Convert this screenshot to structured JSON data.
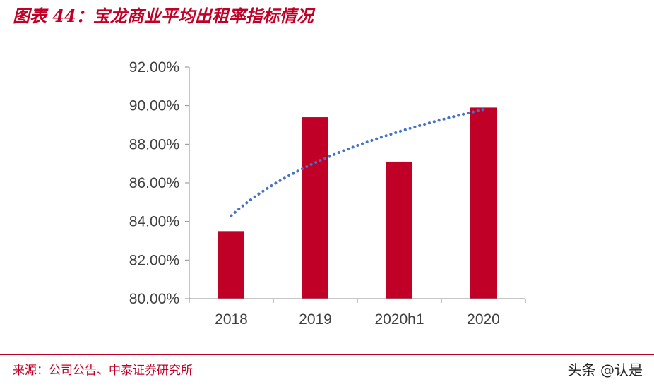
{
  "title": "图表 44：宝龙商业平均出租率指标情况",
  "source": "来源：公司公告、中泰证券研究所",
  "watermark": "头条 @认是",
  "colors": {
    "accent": "#c00026",
    "bar": "#c00026",
    "trendline": "#4472c4",
    "axis_text": "#404040"
  },
  "chart_data": {
    "type": "bar",
    "categories": [
      "2018",
      "2019",
      "2020h1",
      "2020"
    ],
    "series": [
      {
        "values": [
          83.5,
          89.4,
          87.1,
          89.9
        ]
      }
    ],
    "trendline": {
      "type": "logarithmic",
      "style": "dotted",
      "start": 84.3,
      "end": 89.8
    },
    "ylim": [
      80,
      92
    ],
    "yticks": [
      80,
      82,
      84,
      86,
      88,
      90,
      92
    ],
    "ytick_labels": [
      "80.00%",
      "82.00%",
      "84.00%",
      "86.00%",
      "88.00%",
      "90.00%",
      "92.00%"
    ],
    "grid": false,
    "legend": "none"
  }
}
